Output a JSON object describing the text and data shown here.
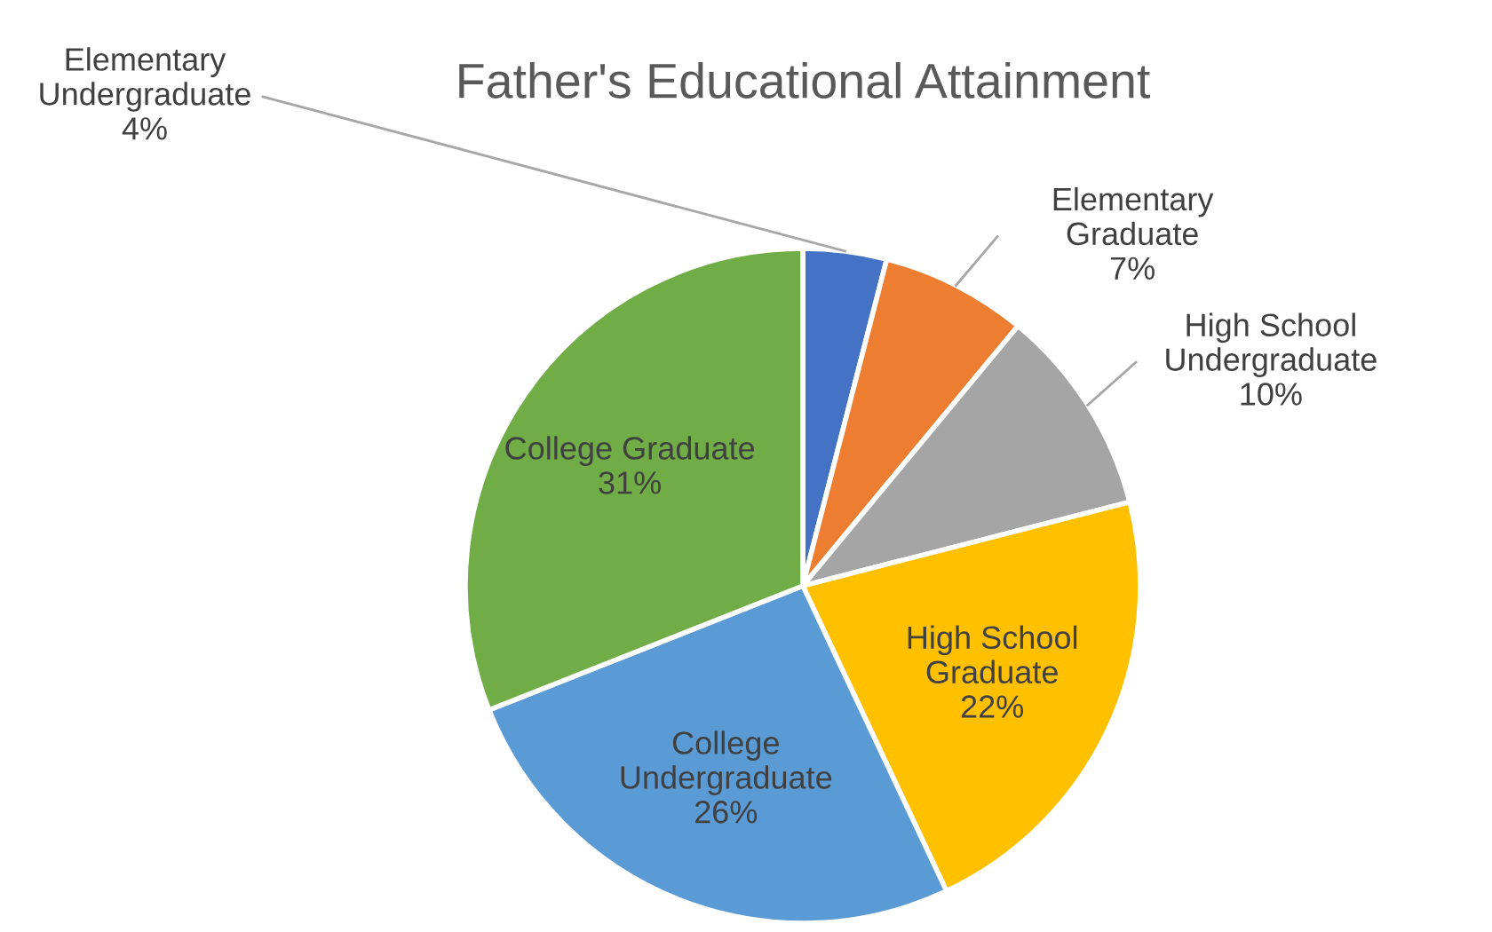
{
  "chart_data": {
    "type": "pie",
    "title": "Father's Educational Attainment",
    "categories": [
      "Elementary Undergraduate",
      "Elementary Graduate",
      "High School Undergraduate",
      "High School Graduate",
      "College Undergraduate",
      "College Graduate"
    ],
    "values": [
      4,
      7,
      10,
      22,
      26,
      31
    ],
    "value_labels": [
      "4%",
      "7%",
      "10%",
      "22%",
      "26%",
      "31%"
    ],
    "colors": [
      "#4472c4",
      "#ed7d31",
      "#a5a5a5",
      "#ffc000",
      "#5b9bd5",
      "#70ad47"
    ],
    "legend": false
  }
}
